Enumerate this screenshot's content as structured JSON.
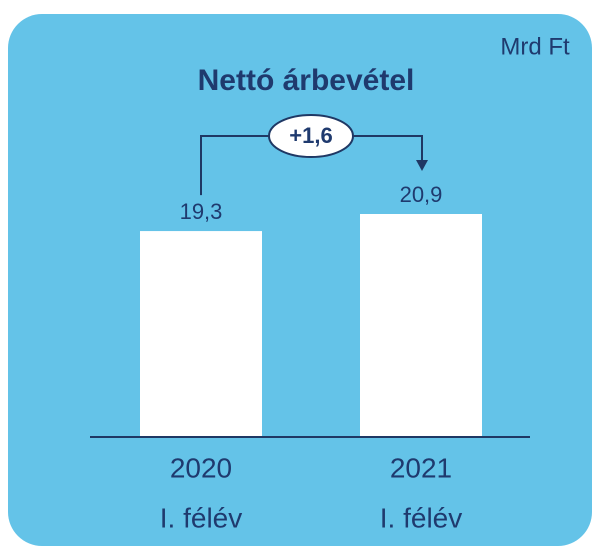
{
  "chart_data": {
    "type": "bar",
    "title": "Nettó árbevétel",
    "unit": "Mrd Ft",
    "categories": [
      [
        "2020",
        "I. félév"
      ],
      [
        "2021",
        "I. félév"
      ]
    ],
    "values": [
      19.3,
      20.9
    ],
    "value_labels": [
      "19,3",
      "20,9"
    ],
    "color": "#ffffff",
    "annotation": "+1,6"
  }
}
